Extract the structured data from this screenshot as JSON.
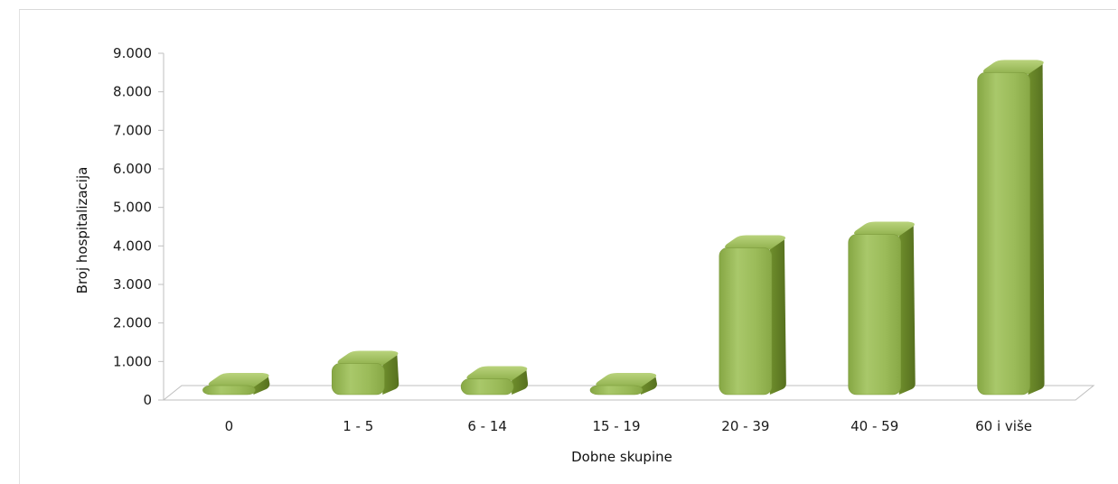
{
  "chart_data": {
    "type": "bar",
    "title": "",
    "xlabel": "Dobne skupine",
    "ylabel": "Broj hospitalizacija",
    "categories": [
      "0",
      "1 - 5",
      "6 - 14",
      "15 - 19",
      "20 - 39",
      "40 - 59",
      "60 i više"
    ],
    "values": [
      200,
      950,
      550,
      300,
      3950,
      4300,
      8500
    ],
    "ylim": [
      0,
      9000
    ],
    "yticks": [
      0,
      1000,
      2000,
      3000,
      4000,
      5000,
      6000,
      7000,
      8000,
      9000
    ],
    "ytick_labels": [
      "0",
      "1.000",
      "2.000",
      "3.000",
      "4.000",
      "5.000",
      "6.000",
      "7.000",
      "8.000",
      "9.000"
    ],
    "grid": false,
    "legend": "none",
    "style": "3d-cylinder",
    "colors": {
      "bar_front": "#9bbb59",
      "bar_light": "#c5da8a",
      "bar_side": "#6f8e2c",
      "bar_top": "#aecb66",
      "floor": "#bfbfbf"
    }
  }
}
